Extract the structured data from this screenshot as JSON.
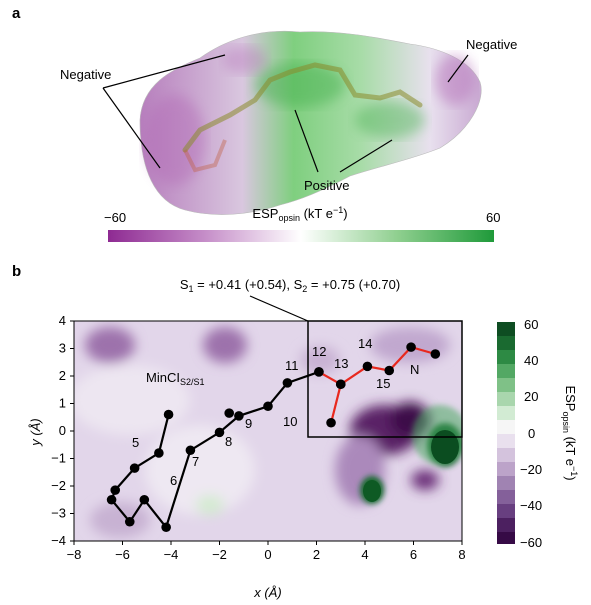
{
  "figure": {
    "panel_a": {
      "label": "a",
      "annotations": {
        "negative_left": "Negative",
        "negative_right": "Negative",
        "positive": "Positive"
      },
      "colorbar": {
        "min_label": "−60",
        "max_label": "60",
        "title_main": "ESP",
        "title_sub": "opsin",
        "title_unit": " (kT e",
        "title_sup": "−1",
        "title_close": ")"
      },
      "colors": {
        "negative": "#8e2a92",
        "neutral": "#ffffff",
        "positive": "#1f9a3a"
      }
    },
    "panel_b": {
      "label": "b",
      "callout": {
        "s1": "S",
        "s1_sub": "1",
        "s1_val": " = +0.41 (+0.54), S",
        "s2_sub": "2",
        "s2_val": " = +0.75 (+0.70)"
      },
      "mincl": {
        "main": "MinCI",
        "sub": "S2/S1"
      },
      "x_axis_label": "x (Å)",
      "y_axis_label": "y (Å)",
      "colorbar": {
        "ticks": [
          "60",
          "40",
          "20",
          "0",
          "−20",
          "−40",
          "−60"
        ],
        "title_main": "ESP",
        "title_sub": "opsin",
        "title_unit": " (kT e",
        "title_sup": "−1",
        "title_close": ")"
      },
      "atom_labels": [
        "5",
        "6",
        "7",
        "8",
        "9",
        "10",
        "11",
        "12",
        "13",
        "14",
        "15",
        "N"
      ]
    }
  },
  "chart_data": {
    "type": "scatter",
    "xlabel": "x (Å)",
    "ylabel": "y (Å)",
    "xlim": [
      -8,
      8
    ],
    "ylim": [
      -4,
      4
    ],
    "x_ticks": [
      "−8",
      "−6",
      "−4",
      "−2",
      "0",
      "2",
      "4",
      "6",
      "8"
    ],
    "y_ticks": [
      "4",
      "3",
      "2",
      "1",
      "0",
      "−1",
      "−2",
      "−3",
      "−4"
    ],
    "black_chain": [
      {
        "x": -4.1,
        "y": 0.6
      },
      {
        "x": -4.5,
        "y": -0.8
      },
      {
        "x": -5.5,
        "y": -1.35
      },
      {
        "x": -6.3,
        "y": -2.15
      },
      {
        "x": -6.45,
        "y": -2.5
      },
      {
        "x": -5.7,
        "y": -3.3
      },
      {
        "x": -5.1,
        "y": -2.5
      },
      {
        "x": -4.2,
        "y": -3.5
      },
      {
        "x": -3.2,
        "y": -0.7
      },
      {
        "x": -2.0,
        "y": -0.05
      },
      {
        "x": -1.2,
        "y": 0.55
      },
      {
        "x": 0.0,
        "y": 0.9
      },
      {
        "x": 0.8,
        "y": 1.75
      },
      {
        "x": 2.1,
        "y": 2.15
      }
    ],
    "black_extra": [
      {
        "x": -1.6,
        "y": 0.65
      }
    ],
    "red_chain": [
      {
        "x": 2.1,
        "y": 2.15
      },
      {
        "x": 3.0,
        "y": 1.7
      },
      {
        "x": 2.6,
        "y": 0.3
      },
      {
        "x": 3.0,
        "y": 1.7
      },
      {
        "x": 4.1,
        "y": 2.35
      },
      {
        "x": 5.0,
        "y": 2.2
      },
      {
        "x": 5.9,
        "y": 3.05
      },
      {
        "x": 6.9,
        "y": 2.8
      }
    ],
    "colorbar": {
      "min": -60,
      "max": 60
    }
  }
}
